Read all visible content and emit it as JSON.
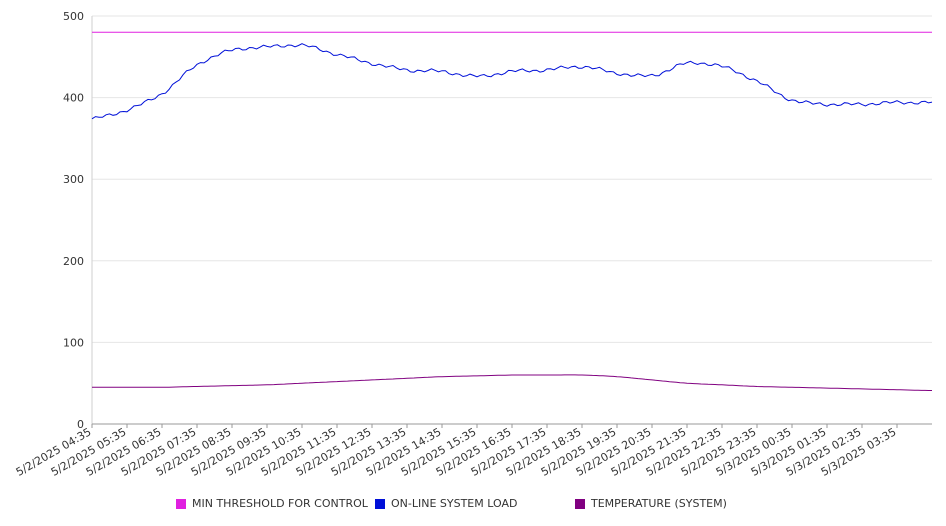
{
  "chart_data": {
    "type": "line",
    "title": "",
    "xlabel": "",
    "ylabel": "",
    "ylim": [
      0,
      500
    ],
    "y_ticks": [
      0,
      100,
      200,
      300,
      400,
      500
    ],
    "grid": "horizontal",
    "legend_position": "bottom",
    "x_tick_labels": [
      "5/2/2025 04:35",
      "5/2/2025 05:35",
      "5/2/2025 06:35",
      "5/2/2025 07:35",
      "5/2/2025 08:35",
      "5/2/2025 09:35",
      "5/2/2025 10:35",
      "5/2/2025 11:35",
      "5/2/2025 12:35",
      "5/2/2025 13:35",
      "5/2/2025 14:35",
      "5/2/2025 15:35",
      "5/2/2025 16:35",
      "5/2/2025 17:35",
      "5/2/2025 18:35",
      "5/2/2025 19:35",
      "5/2/2025 20:35",
      "5/2/2025 21:35",
      "5/2/2025 22:35",
      "5/2/2025 23:35",
      "5/3/2025 00:35",
      "5/3/2025 01:35",
      "5/3/2025 02:35",
      "5/3/2025 03:35"
    ],
    "x_start": "5/2/2025 04:35",
    "x_end": "5/3/2025 04:35",
    "series": [
      {
        "name": "MIN THRESHOLD FOR CONTROL",
        "color": "#e020e0",
        "values": [
          480,
          480,
          480,
          480,
          480,
          480,
          480,
          480,
          480,
          480,
          480,
          480,
          480,
          480,
          480,
          480,
          480,
          480,
          480,
          480,
          480,
          480,
          480,
          480,
          480
        ]
      },
      {
        "name": "ON-LINE SYSTEM LOAD",
        "color": "#0010d8",
        "values": [
          374,
          385,
          405,
          440,
          458,
          462,
          464,
          453,
          442,
          434,
          432,
          426,
          432,
          434,
          438,
          430,
          427,
          442,
          438,
          420,
          397,
          392,
          392,
          394,
          394
        ]
      },
      {
        "name": "TEMPERATURE (SYSTEM)",
        "color": "#800080",
        "values": [
          45,
          45,
          45,
          46,
          47,
          48,
          50,
          52,
          54,
          56,
          58,
          59,
          60,
          60,
          60,
          58,
          54,
          50,
          48,
          46,
          45,
          44,
          43,
          42,
          41
        ]
      }
    ]
  }
}
